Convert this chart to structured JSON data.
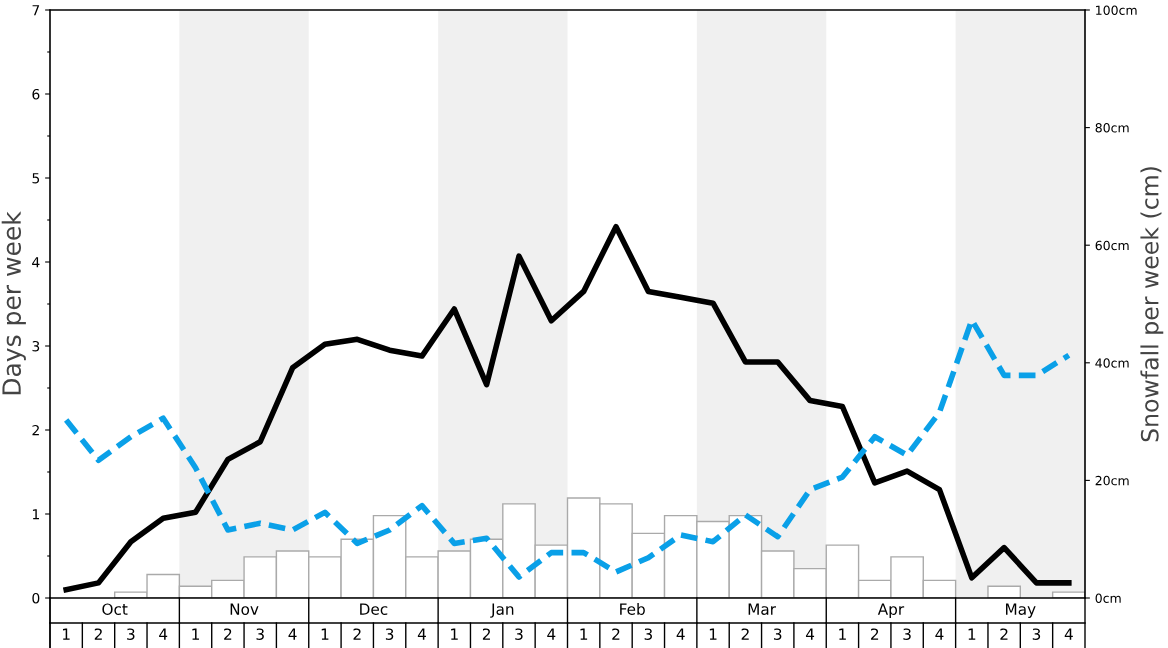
{
  "chart_data": {
    "type": "bar",
    "categories": [
      "1",
      "2",
      "3",
      "4",
      "1",
      "2",
      "3",
      "4",
      "1",
      "2",
      "3",
      "4",
      "1",
      "2",
      "3",
      "4",
      "1",
      "2",
      "3",
      "4",
      "1",
      "2",
      "3",
      "4",
      "1",
      "2",
      "3",
      "4",
      "1",
      "2",
      "3",
      "4"
    ],
    "annotations": [
      "Oct",
      "Nov",
      "Dec",
      "Jan",
      "Feb",
      "Mar",
      "Apr",
      "May"
    ],
    "ylabel": "Days per week",
    "y2label": "Snowfall per week (cm)",
    "ylim": [
      0,
      7
    ],
    "yticks": [
      0,
      {
        "value": 0.5,
        "label": null
      },
      1,
      {
        "value": 1.5,
        "label": null
      },
      2,
      {
        "value": 2.5,
        "label": null
      },
      3,
      {
        "value": 3.5,
        "label": null
      },
      4,
      {
        "value": 4.5,
        "label": null
      },
      5,
      {
        "value": 5.5,
        "label": null
      },
      6,
      {
        "value": 6.5,
        "label": null
      },
      7
    ],
    "y2lim": [
      0,
      100
    ],
    "y2ticks": [
      {
        "value": 0,
        "label": "0cm"
      },
      {
        "value": 20,
        "label": "20cm"
      },
      {
        "value": 40,
        "label": "40cm"
      },
      {
        "value": 60,
        "label": "60cm"
      },
      {
        "value": 80,
        "label": "80cm"
      },
      {
        "value": 100,
        "label": "100cm"
      }
    ],
    "grid": false,
    "legend": false,
    "series": [
      {
        "axis": "y2",
        "color": "#ffffff",
        "values": [
          0,
          0,
          1,
          4,
          2,
          3,
          7,
          8,
          7,
          10,
          14,
          7,
          8,
          10,
          16,
          9,
          17,
          16,
          11,
          14,
          13,
          14,
          8,
          5,
          9,
          3,
          7,
          3,
          0,
          2,
          0,
          1
        ]
      },
      {
        "type": "line",
        "color": "#000000",
        "values": [
          0.1,
          0.18,
          0.67,
          0.95,
          1.02,
          1.65,
          1.86,
          2.74,
          3.02,
          3.08,
          2.95,
          2.88,
          3.44,
          2.54,
          4.07,
          3.3,
          3.65,
          4.42,
          3.65,
          3.58,
          3.51,
          2.81,
          2.81,
          2.35,
          2.28,
          1.37,
          1.51,
          1.29,
          0.24,
          0.6,
          0.18,
          0.18
        ]
      },
      {
        "type": "line",
        "color": "#0aa0e8",
        "line_style": "dashed",
        "values": [
          2.12,
          1.64,
          1.92,
          2.14,
          1.55,
          0.81,
          0.89,
          0.81,
          1.02,
          0.65,
          0.81,
          1.1,
          0.65,
          0.71,
          0.25,
          0.54,
          0.54,
          0.31,
          0.48,
          0.75,
          0.67,
          0.99,
          0.73,
          1.29,
          1.44,
          1.92,
          1.7,
          2.21,
          3.31,
          2.65,
          2.65,
          2.89
        ]
      }
    ]
  }
}
